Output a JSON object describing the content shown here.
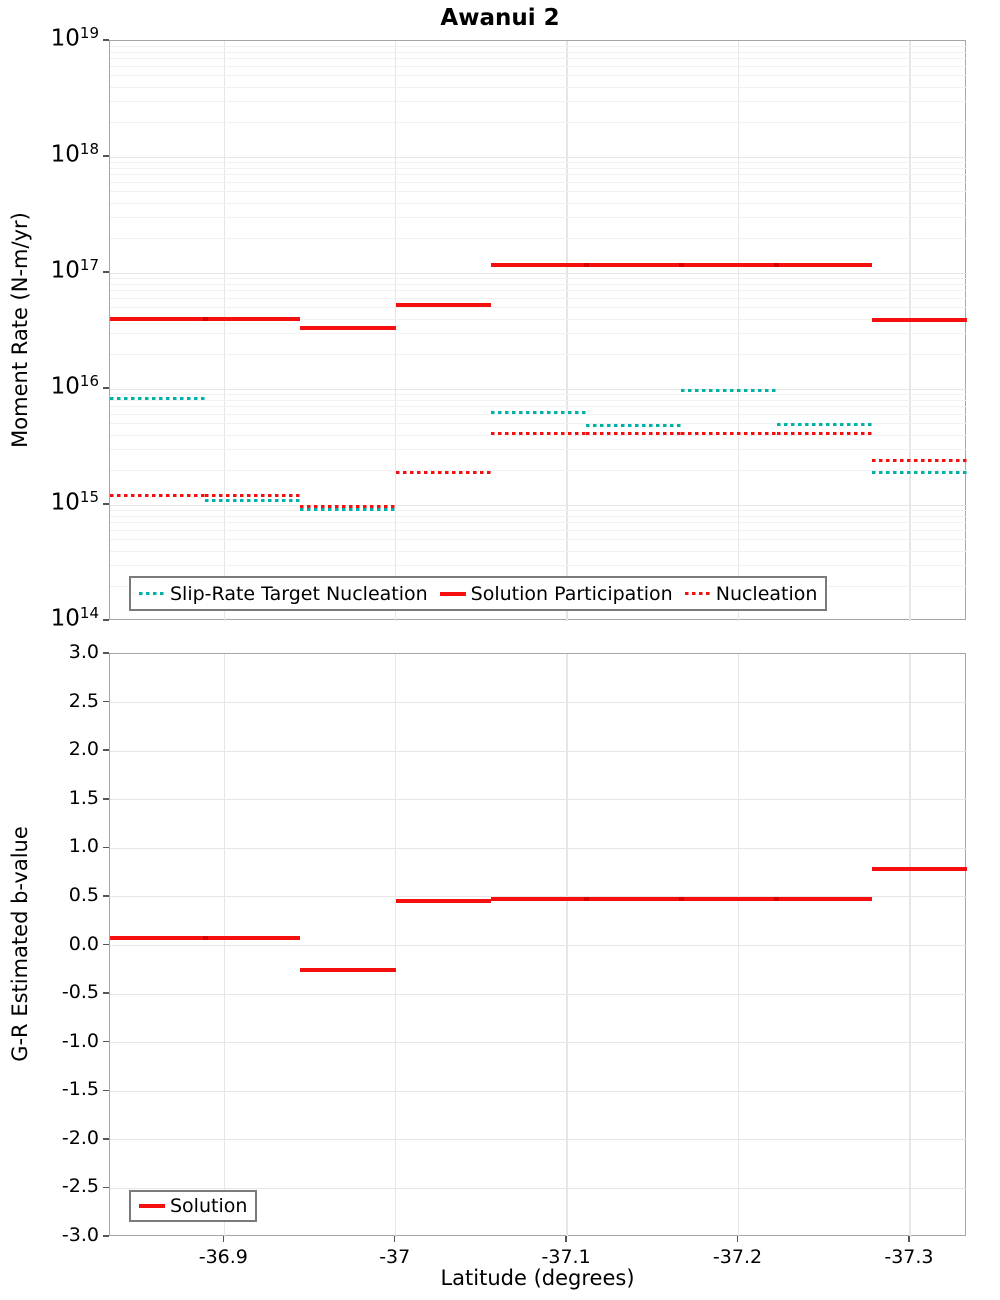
{
  "figure": {
    "title": "Awanui 2"
  },
  "colors": {
    "solution_red": "#f50f0f",
    "target_teal": "#00b1a9",
    "joint_red": "#d60000",
    "grid_major": "#e6e6e6",
    "grid_minor": "#f1f1f1",
    "spine": "#a6a6a6",
    "tick": "#555555",
    "legend_border": "#7a7a7a"
  },
  "chart_data": [
    {
      "type": "line",
      "title": "Awanui 2",
      "ylabel": "Moment Rate (N-m/yr)",
      "yscale": "log",
      "ylim": [
        100000000000000.0,
        1e+19
      ],
      "ytick_exponents": [
        19,
        18,
        17,
        16,
        15,
        14
      ],
      "xlim": [
        -36.8333,
        -37.3333
      ],
      "xticks": [
        -36.9,
        -37,
        -37.1,
        -37.2,
        -37.3
      ],
      "xtick_labels": [
        "-36.9",
        "-37",
        "-37.1",
        "-37.2",
        "-37.3"
      ],
      "x_section_edges": [
        -36.8333,
        -36.8889,
        -36.9444,
        -37,
        -37.0556,
        -37.1111,
        -37.1667,
        -37.2222,
        -37.2778,
        -37.3333
      ],
      "grid": true,
      "legend_position": "lower center",
      "series": [
        {
          "name": "Slip-Rate Target Nucleation",
          "style": "dotted",
          "color_key": "target_teal",
          "values": [
            8200000000000000.0,
            1100000000000000.0,
            920000000000000.0,
            1900000000000000.0,
            6300000000000000.0,
            4800000000000000.0,
            9800000000000000.0,
            4900000000000000.0,
            1900000000000000.0
          ]
        },
        {
          "name": "Nucleation",
          "style": "dotted",
          "color_key": "solution_red",
          "values": [
            1200000000000000.0,
            1200000000000000.0,
            980000000000000.0,
            1900000000000000.0,
            4100000000000000.0,
            4100000000000000.0,
            4100000000000000.0,
            4100000000000000.0,
            2400000000000000.0
          ]
        },
        {
          "name": "Solution Participation",
          "style": "solid",
          "color_key": "solution_red",
          "values": [
            4e+16,
            4e+16,
            3.35e+16,
            5.35e+16,
            1.18e+17,
            1.18e+17,
            1.18e+17,
            1.18e+17,
            3.9e+16
          ]
        }
      ],
      "legend": [
        {
          "label": "Slip-Rate Target Nucleation",
          "swatch": "dotted",
          "color_key": "target_teal"
        },
        {
          "label": "Solution Participation",
          "swatch": "solid",
          "color_key": "solution_red"
        },
        {
          "label": "Nucleation",
          "swatch": "dotted",
          "color_key": "solution_red"
        }
      ]
    },
    {
      "type": "line",
      "ylabel": "G-R Estimated b-value",
      "xlabel": "Latitude (degrees)",
      "yscale": "linear",
      "ylim": [
        -3.0,
        3.0
      ],
      "ytick_step": 0.5,
      "xlim": [
        -36.8333,
        -37.3333
      ],
      "xticks": [
        -36.9,
        -37,
        -37.1,
        -37.2,
        -37.3
      ],
      "xtick_labels": [
        "-36.9",
        "-37",
        "-37.1",
        "-37.2",
        "-37.3"
      ],
      "x_section_edges": [
        -36.8333,
        -36.8889,
        -36.9444,
        -37,
        -37.0556,
        -37.1111,
        -37.1667,
        -37.2222,
        -37.2778,
        -37.3333
      ],
      "grid": true,
      "legend_position": "lower left",
      "series": [
        {
          "name": "Solution",
          "style": "solid",
          "color_key": "solution_red",
          "values": [
            0.08,
            0.08,
            -0.25,
            0.455,
            0.48,
            0.48,
            0.48,
            0.48,
            0.79
          ]
        }
      ],
      "legend": [
        {
          "label": "Solution",
          "swatch": "solid",
          "color_key": "solution_red"
        }
      ]
    }
  ]
}
